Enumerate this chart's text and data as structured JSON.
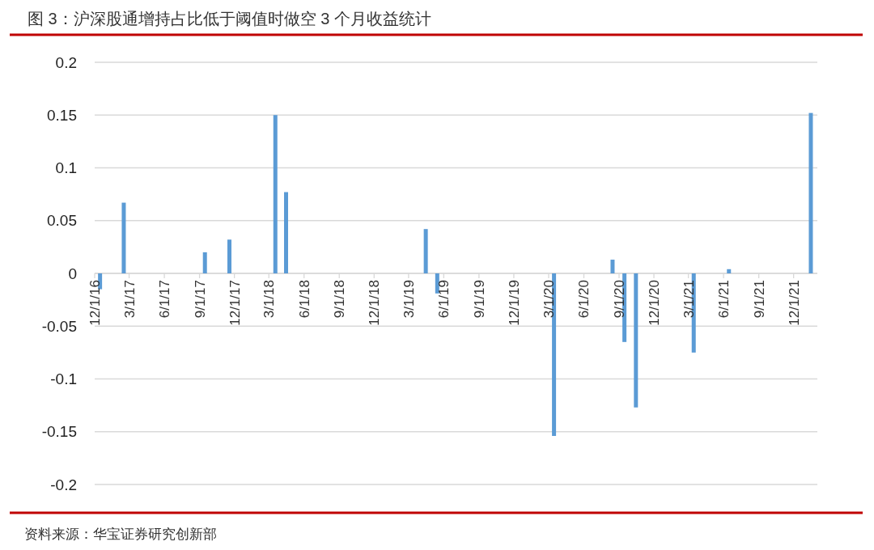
{
  "chart_data": {
    "type": "bar",
    "title": "图 3：沪深股通增持占比低于阈值时做空 3 个月收益统计",
    "annotations": [
      "资料来源：华宝证券研究创新部"
    ],
    "x": [
      "2016-12-15",
      "2017-02-15",
      "2017-09-15",
      "2017-11-18",
      "2018-03-18",
      "2018-04-15",
      "2019-04-15",
      "2019-05-15",
      "2020-03-15",
      "2020-08-15",
      "2020-09-15",
      "2020-10-15",
      "2021-03-15",
      "2021-06-15",
      "2022-01-15"
    ],
    "values": [
      -0.015,
      0.067,
      0.02,
      0.032,
      0.15,
      0.077,
      0.042,
      -0.019,
      -0.154,
      0.013,
      -0.065,
      -0.127,
      -0.075,
      0.004,
      0.152
    ],
    "color": "#5b9bd5",
    "xlim": [
      "2016-12-01",
      "2022-02-01"
    ],
    "xticks": [
      {
        "value": "2016-12-01",
        "label": "12/1/16"
      },
      {
        "value": "2017-03-01",
        "label": "3/1/17"
      },
      {
        "value": "2017-06-01",
        "label": "6/1/17"
      },
      {
        "value": "2017-09-01",
        "label": "9/1/17"
      },
      {
        "value": "2017-12-01",
        "label": "12/1/17"
      },
      {
        "value": "2018-03-01",
        "label": "3/1/18"
      },
      {
        "value": "2018-06-01",
        "label": "6/1/18"
      },
      {
        "value": "2018-09-01",
        "label": "9/1/18"
      },
      {
        "value": "2018-12-01",
        "label": "12/1/18"
      },
      {
        "value": "2019-03-01",
        "label": "3/1/19"
      },
      {
        "value": "2019-06-01",
        "label": "6/1/19"
      },
      {
        "value": "2019-09-01",
        "label": "9/1/19"
      },
      {
        "value": "2019-12-01",
        "label": "12/1/19"
      },
      {
        "value": "2020-03-01",
        "label": "3/1/20"
      },
      {
        "value": "2020-06-01",
        "label": "6/1/20"
      },
      {
        "value": "2020-09-01",
        "label": "9/1/20"
      },
      {
        "value": "2020-12-01",
        "label": "12/1/20"
      },
      {
        "value": "2021-03-01",
        "label": "3/1/21"
      },
      {
        "value": "2021-06-01",
        "label": "6/1/21"
      },
      {
        "value": "2021-09-01",
        "label": "9/1/21"
      },
      {
        "value": "2021-12-01",
        "label": "12/1/21"
      }
    ],
    "ylim": [
      -0.2,
      0.2
    ],
    "yticks": [
      -0.2,
      -0.15,
      -0.1,
      -0.05,
      0,
      0.05,
      0.1,
      0.15,
      0.2
    ],
    "grid": "y"
  }
}
